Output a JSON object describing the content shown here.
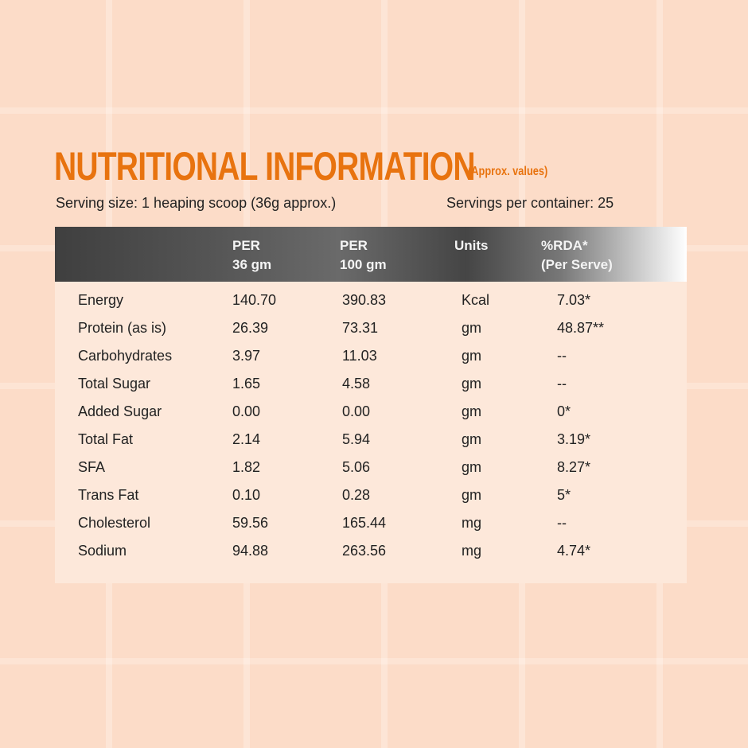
{
  "title": "NUTRITIONAL INFORMATION",
  "subtitle": "(Approx. values)",
  "serving_size": "Serving size: 1 heaping scoop (36g approx.)",
  "servings_per_container": "Servings per container: 25",
  "headers": {
    "per36_1": "PER",
    "per36_2": "36 gm",
    "per100_1": "PER",
    "per100_2": "100 gm",
    "units": "Units",
    "rda_1": "%RDA*",
    "rda_2": "(Per Serve)"
  },
  "rows": [
    {
      "name": "Energy",
      "per36": "140.70",
      "per100": "390.83",
      "unit": "Kcal",
      "rda": "7.03*"
    },
    {
      "name": "Protein (as is)",
      "per36": "26.39",
      "per100": "73.31",
      "unit": "gm",
      "rda": "48.87**"
    },
    {
      "name": "Carbohydrates",
      "per36": "3.97",
      "per100": "11.03",
      "unit": "gm",
      "rda": "--"
    },
    {
      "name": "Total Sugar",
      "per36": "1.65",
      "per100": "4.58",
      "unit": "gm",
      "rda": "--"
    },
    {
      "name": "Added Sugar",
      "per36": "0.00",
      "per100": "0.00",
      "unit": "gm",
      "rda": "0*"
    },
    {
      "name": "Total Fat",
      "per36": "2.14",
      "per100": "5.94",
      "unit": "gm",
      "rda": "3.19*"
    },
    {
      "name": "SFA",
      "per36": "1.82",
      "per100": "5.06",
      "unit": "gm",
      "rda": "8.27*"
    },
    {
      "name": "Trans Fat",
      "per36": "0.10",
      "per100": "0.28",
      "unit": "gm",
      "rda": "5*"
    },
    {
      "name": "Cholesterol",
      "per36": "59.56",
      "per100": "165.44",
      "unit": "mg",
      "rda": "--"
    },
    {
      "name": "Sodium",
      "per36": "94.88",
      "per100": "263.56",
      "unit": "mg",
      "rda": "4.74*"
    }
  ]
}
